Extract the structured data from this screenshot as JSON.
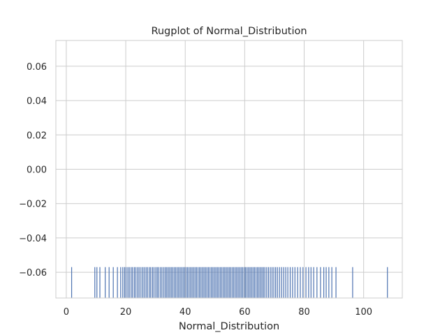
{
  "chart_data": {
    "type": "rug",
    "title": "Rugplot of Normal_Distribution",
    "xlabel": "Normal_Distribution",
    "ylabel": "",
    "xlim": [
      -3.5,
      113
    ],
    "ylim": [
      -0.075,
      0.075
    ],
    "xticks": [
      0,
      20,
      40,
      60,
      80,
      100
    ],
    "yticks": [
      0.06,
      0.04,
      0.02,
      0.0,
      -0.02,
      -0.04,
      -0.06
    ],
    "ytick_labels": [
      "0.06",
      "0.04",
      "0.02",
      "0.00",
      "−0.02",
      "−0.04",
      "−0.06"
    ],
    "grid": true,
    "rug_height_fraction": 0.12,
    "series": [
      {
        "color": "#4c72b0",
        "values": [
          1.8,
          9.6,
          10.3,
          11.3,
          13.1,
          14.4,
          15.8,
          17.2,
          18.3,
          19.0,
          19.6,
          20.1,
          20.7,
          21.2,
          21.8,
          22.3,
          22.9,
          23.4,
          24.0,
          24.5,
          25.1,
          25.7,
          26.2,
          26.8,
          27.3,
          27.9,
          28.4,
          29.0,
          29.5,
          30.1,
          30.6,
          31.1,
          31.7,
          32.2,
          32.8,
          33.3,
          33.8,
          34.3,
          34.8,
          35.3,
          35.8,
          36.3,
          36.8,
          37.3,
          37.8,
          38.3,
          38.8,
          39.3,
          39.8,
          40.3,
          40.8,
          41.3,
          41.8,
          42.3,
          42.8,
          43.3,
          43.8,
          44.3,
          44.8,
          45.3,
          45.8,
          46.3,
          46.8,
          47.3,
          47.8,
          48.3,
          48.8,
          49.3,
          49.8,
          50.3,
          50.8,
          51.3,
          51.8,
          52.3,
          52.8,
          53.3,
          53.8,
          54.3,
          54.8,
          55.3,
          55.8,
          56.3,
          56.8,
          57.3,
          57.8,
          58.3,
          58.8,
          59.3,
          59.8,
          60.3,
          60.8,
          61.3,
          61.8,
          62.3,
          62.8,
          63.3,
          63.8,
          64.3,
          64.8,
          65.3,
          65.8,
          66.3,
          66.8,
          67.4,
          68.0,
          68.6,
          69.2,
          69.8,
          70.4,
          71.0,
          71.7,
          72.4,
          73.1,
          73.8,
          74.5,
          75.3,
          76.1,
          76.9,
          77.8,
          78.7,
          79.6,
          80.6,
          81.5,
          82.3,
          83.2,
          84.3,
          85.5,
          86.6,
          87.4,
          88.3,
          89.3,
          90.7,
          96.3,
          108.0
        ]
      }
    ]
  }
}
